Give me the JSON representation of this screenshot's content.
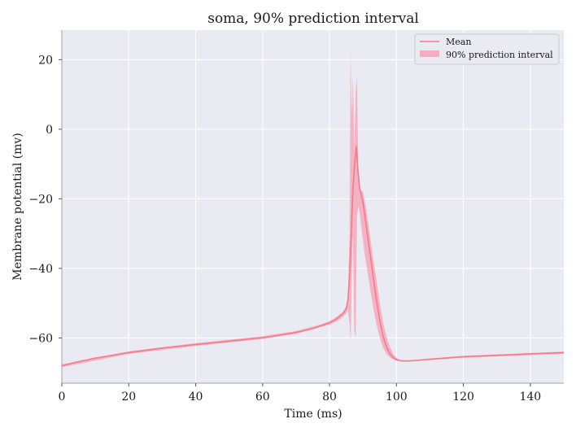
{
  "chart_data": {
    "type": "line",
    "title": "soma, 90% prediction interval",
    "xlabel": "Time (ms)",
    "ylabel": "Membrane potential (mv)",
    "xlim": [
      0,
      150
    ],
    "ylim": [
      -73,
      28.5
    ],
    "xticks": [
      0,
      20,
      40,
      60,
      80,
      100,
      120,
      140
    ],
    "yticks": [
      20,
      0,
      -20,
      -40,
      -60
    ],
    "xtick_labels": [
      "0",
      "20",
      "40",
      "60",
      "80",
      "100",
      "120",
      "140"
    ],
    "ytick_labels": [
      "20",
      "0",
      "−20",
      "−40",
      "−60"
    ],
    "grid": true,
    "legend_position": "top-right",
    "colors": {
      "background": "#eaeaf2",
      "grid": "#ffffff",
      "mean": "#f47a8b",
      "band": "#f4a2b2"
    },
    "series": [
      {
        "name": "Mean",
        "kind": "line",
        "x": [
          0,
          5,
          10,
          20,
          30,
          40,
          50,
          60,
          65,
          70,
          75,
          78,
          80,
          82,
          83,
          84,
          85,
          85.5,
          86,
          86.5,
          87,
          87.5,
          88,
          88.5,
          89,
          89.5,
          90,
          91,
          92,
          93,
          94,
          95,
          96,
          97,
          98,
          99,
          100,
          101,
          102,
          104,
          110,
          120,
          130,
          140,
          150
        ],
        "y": [
          -68,
          -66.8,
          -65.8,
          -64.2,
          -62.9,
          -61.9,
          -60.9,
          -59.9,
          -59.2,
          -58.4,
          -57.3,
          -56.3,
          -55.6,
          -54.6,
          -53.8,
          -53,
          -51.5,
          -49,
          -42,
          -30,
          -17,
          -10,
          -5,
          -12,
          -17,
          -19,
          -21,
          -28,
          -35,
          -42,
          -49,
          -55,
          -59.5,
          -62.5,
          -64.5,
          -65.6,
          -66.2,
          -66.5,
          -66.6,
          -66.6,
          -66.1,
          -65.4,
          -65,
          -64.6,
          -64.2
        ]
      },
      {
        "name": "90% prediction interval",
        "kind": "band",
        "x": [
          0,
          20,
          40,
          60,
          70,
          78,
          80,
          82,
          84,
          85,
          85.5,
          86,
          86.3,
          86.6,
          87,
          87.4,
          87.8,
          88.2,
          88.6,
          89,
          89.5,
          90,
          90.5,
          91,
          92,
          93,
          94,
          95,
          96,
          97,
          98,
          99,
          100,
          101,
          102,
          104,
          110,
          120,
          140,
          150
        ],
        "lower": [
          -68.4,
          -64.6,
          -62.3,
          -60.3,
          -58.8,
          -56.7,
          -56.2,
          -55.3,
          -54,
          -53,
          -52,
          -56,
          -61,
          -45,
          -30,
          -58,
          -60,
          -25,
          -22,
          -24,
          -28,
          -32,
          -36,
          -39,
          -45,
          -51,
          -56,
          -60,
          -62.8,
          -64.6,
          -65.6,
          -66.2,
          -66.5,
          -66.7,
          -66.8,
          -66.8,
          -66.4,
          -65.7,
          -64.9,
          -64.5
        ],
        "upper": [
          -67.6,
          -63.8,
          -61.5,
          -59.5,
          -58,
          -55.9,
          -55.2,
          -54,
          -52.6,
          -51,
          -48,
          -30,
          23,
          4,
          15,
          -6,
          11,
          15,
          -12,
          -17.5,
          -17.5,
          -18,
          -20.5,
          -23,
          -30,
          -37,
          -43,
          -50,
          -55.5,
          -59.5,
          -62.5,
          -64.5,
          -65.7,
          -66.3,
          -66.5,
          -66.5,
          -65.9,
          -65.1,
          -64.3,
          -63.9
        ]
      }
    ]
  }
}
